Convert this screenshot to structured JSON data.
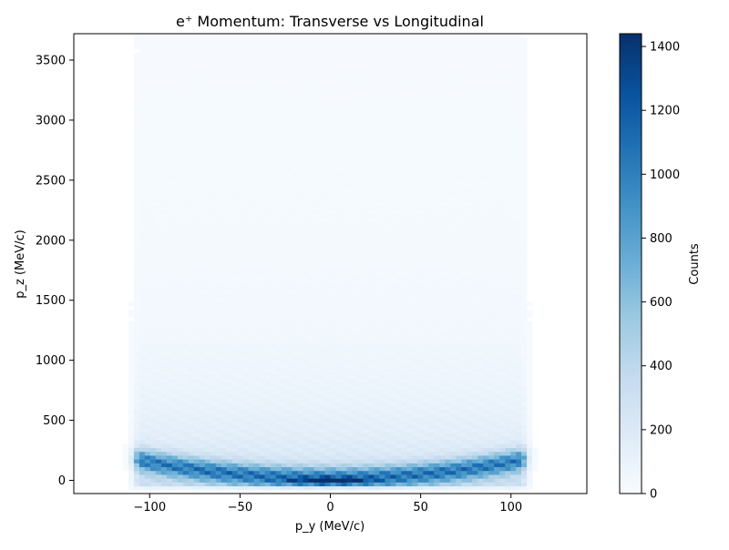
{
  "chart_data": {
    "type": "heatmap",
    "title": "e⁺ Momentum: Transverse vs Longitudinal",
    "xlabel": "p_y (MeV/c)",
    "ylabel": "p_z (MeV/c)",
    "colorbar_label": "Counts",
    "colormap": "Blues",
    "xlim": [
      -142,
      142
    ],
    "ylim": [
      -110,
      3720
    ],
    "clim": [
      0,
      1440
    ],
    "x_ticks": [
      -100,
      -50,
      0,
      50,
      100
    ],
    "x_tick_labels": [
      "−100",
      "−50",
      "0",
      "50",
      "100"
    ],
    "y_ticks": [
      0,
      500,
      1000,
      1500,
      2000,
      2500,
      3000,
      3500
    ],
    "y_tick_labels": [
      "0",
      "500",
      "1000",
      "1500",
      "2000",
      "2500",
      "3000",
      "3500"
    ],
    "colorbar_ticks": [
      0,
      200,
      400,
      600,
      800,
      1000,
      1200,
      1400
    ],
    "colorbar_tick_labels": [
      "0",
      "200",
      "400",
      "600",
      "800",
      "1000",
      "1200",
      "1400"
    ],
    "grid": false,
    "legend": "none",
    "density_profile": {
      "py_extent": [
        -105,
        105
      ],
      "dense_band_pz": [
        0,
        400
      ],
      "peak_pz": 0,
      "peak_count": 1440,
      "band_edge_count": 800,
      "high_pz_count": 40
    }
  }
}
